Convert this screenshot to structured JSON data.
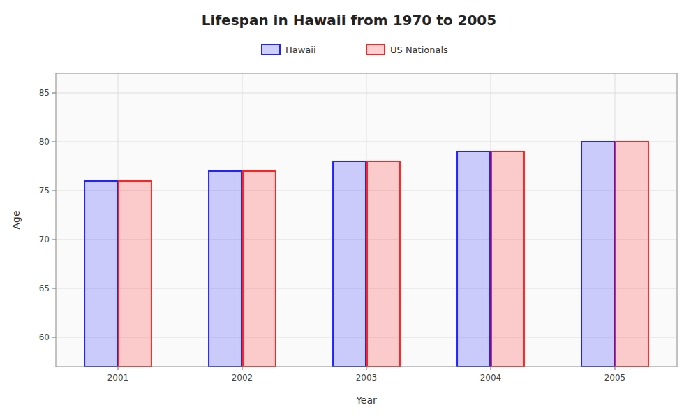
{
  "chart_data": {
    "type": "bar",
    "title": "Lifespan in Hawaii from 1970 to 2005",
    "x_label": "Year",
    "y_label": "Age",
    "categories": [
      "2001",
      "2002",
      "2003",
      "2004",
      "2005"
    ],
    "series": [
      {
        "name": "Hawaii",
        "color": "#2222ff",
        "values": [
          76,
          77,
          78,
          79,
          80
        ]
      },
      {
        "name": "US Nationals",
        "color": "#ff2222",
        "values": [
          76,
          77,
          78,
          79,
          80
        ]
      }
    ],
    "ylim": [
      57,
      87
    ],
    "yticks": [
      60,
      65,
      70,
      75,
      80,
      85
    ],
    "grid": true,
    "legend": "top"
  }
}
